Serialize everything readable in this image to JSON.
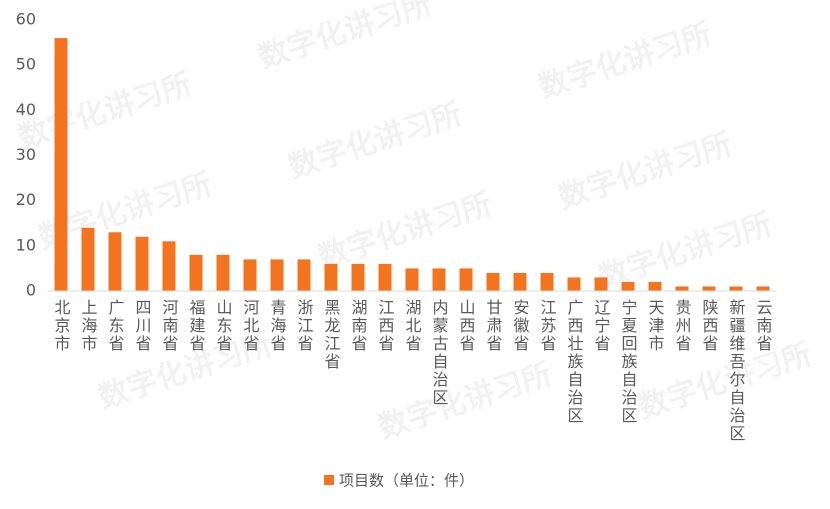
{
  "chart_data": {
    "type": "bar",
    "categories": [
      "北京市",
      "上海市",
      "广东省",
      "四川省",
      "河南省",
      "福建省",
      "山东省",
      "河北省",
      "青海省",
      "浙江省",
      "黑龙江省",
      "湖南省",
      "江西省",
      "湖北省",
      "内蒙古自治区",
      "山西省",
      "甘肃省",
      "安徽省",
      "江苏省",
      "广西壮族自治区",
      "辽宁省",
      "宁夏回族自治区",
      "天津市",
      "贵州省",
      "陕西省",
      "新疆维吾尔自治区",
      "云南省"
    ],
    "values": [
      56,
      14,
      13,
      12,
      11,
      8,
      8,
      7,
      7,
      7,
      6,
      6,
      6,
      5,
      5,
      5,
      4,
      4,
      4,
      3,
      3,
      2,
      2,
      1,
      1,
      1,
      1
    ],
    "series_name": "项目数（单位：件）",
    "color": "#f4731f",
    "ylim": [
      0,
      60
    ],
    "yticks": [
      0,
      10,
      20,
      30,
      40,
      50,
      60
    ],
    "grid": false,
    "legend": "bottom",
    "watermark": "数字化讲习所"
  }
}
